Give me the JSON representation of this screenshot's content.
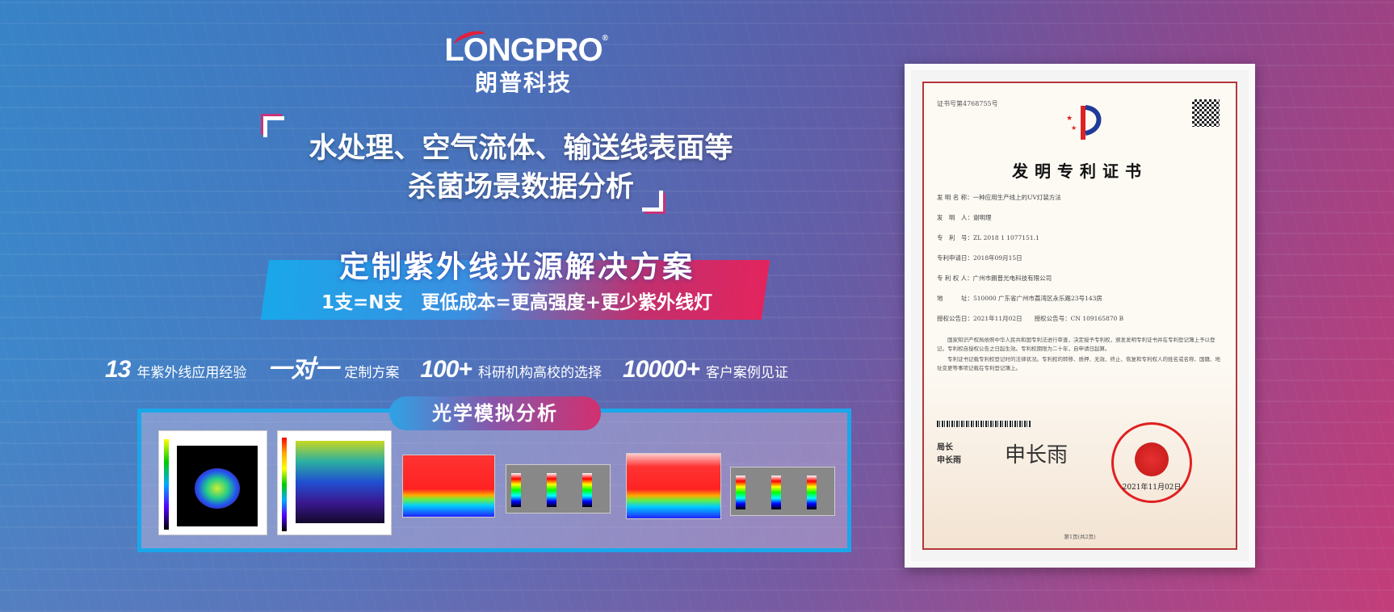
{
  "brand": {
    "logo_en": "LONGPRO",
    "registered": "®",
    "logo_cn": "朗普科技",
    "accent": "#e0203c"
  },
  "headline": {
    "line1": "水处理、空气流体、输送线表面等",
    "line2": "杀菌场景数据分析"
  },
  "banner": {
    "title": "定制紫外线光源解决方案",
    "subtitle": "1支=N支　更低成本=更高强度+更少紫外线灯",
    "colors": [
      "#1aa7ea",
      "#e3245e"
    ]
  },
  "stats": [
    {
      "value": "13",
      "label": "年紫外线应用经验"
    },
    {
      "value": "一对一",
      "label": "定制方案"
    },
    {
      "value": "100+",
      "label": "科研机构高校的选择"
    },
    {
      "value": "10000+",
      "label": "客户案例见证"
    }
  ],
  "analysis": {
    "tab_label": "光学模拟分析",
    "thumbnails": [
      "irradiance-map-ellipse",
      "irradiance-map-scatter",
      "heatmap-1",
      "color-scales-1",
      "heatmap-2",
      "color-scales-2"
    ]
  },
  "certificate": {
    "number": "证书号第4768755号",
    "title": "发明专利证书",
    "fields": [
      "发 明 名 称：一种应用生产线上的UV灯装方法",
      "发　明　人：谢明理",
      "专　利　号：ZL 2018 1 1077151.1",
      "专利申请日：2018年09月15日",
      "专 利 权 人：广州市朗普光电科技有限公司",
      "地　　　址：510000 广东省广州市荔湾区永乐路23号143房",
      "授权公告日：2021年11月02日　　授权公告号：CN 109165870 B"
    ],
    "body": [
      "国家知识产权局依照中华人民共和国专利法进行审查，决定授予专利权，颁发发明专利证书并在专利登记簿上予以登记。专利权自授权公告之日起生效。专利权期限为二十年，自申请日起算。",
      "专利证书记载专利权登记时的法律状况。专利权的转移、质押、无效、终止、恢复和专利权人的姓名或名称、国籍、地址变更等事项记载在专利登记簿上。"
    ],
    "signer_title": "局长",
    "signer_name": "申长雨",
    "signature": "申长雨",
    "seal_date": "2021年11月02日",
    "page": "第1页(共2页)"
  }
}
